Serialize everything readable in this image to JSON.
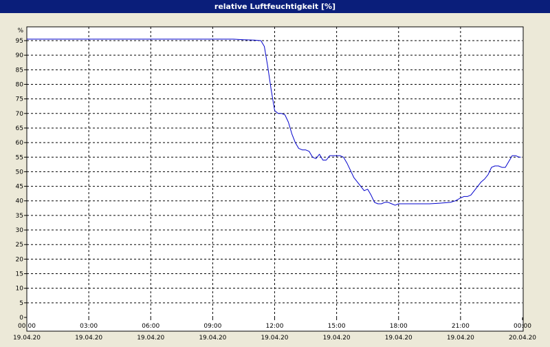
{
  "title": "relative Luftfeuchtigkeit [%]",
  "chart_data": {
    "type": "line",
    "title": "relative Luftfeuchtigkeit [%]",
    "y_unit": "%",
    "ylim": [
      0,
      100
    ],
    "yticks": [
      0,
      5,
      10,
      15,
      20,
      25,
      30,
      35,
      40,
      45,
      50,
      55,
      60,
      65,
      70,
      75,
      80,
      85,
      90,
      95
    ],
    "xlim": [
      "19.04.20 00:00",
      "20.04.20 00:00"
    ],
    "xticks": [
      {
        "time": "00:00",
        "date": "19.04.20"
      },
      {
        "time": "03:00",
        "date": "19.04.20"
      },
      {
        "time": "06:00",
        "date": "19.04.20"
      },
      {
        "time": "09:00",
        "date": "19.04.20"
      },
      {
        "time": "12:00",
        "date": "19.04.20"
      },
      {
        "time": "15:00",
        "date": "19.04.20"
      },
      {
        "time": "18:00",
        "date": "19.04.20"
      },
      {
        "time": "21:00",
        "date": "19.04.20"
      },
      {
        "time": "00:00",
        "date": "20.04.20"
      }
    ],
    "grid": true,
    "line_color": "#0000cc",
    "series": [
      {
        "x": [
          "00:00",
          "10:00",
          "10:30",
          "11:00",
          "11:20",
          "11:30",
          "11:40",
          "11:50",
          "12:00",
          "12:10",
          "12:20",
          "12:30",
          "12:40",
          "12:50",
          "13:00",
          "13:10",
          "13:20",
          "13:30",
          "13:40",
          "13:50",
          "14:00",
          "14:10",
          "14:20",
          "14:30",
          "14:40",
          "14:50",
          "15:00",
          "15:10",
          "15:20",
          "15:30",
          "15:40",
          "15:50",
          "16:00",
          "16:10",
          "16:20",
          "16:30",
          "16:40",
          "16:50",
          "17:00",
          "17:10",
          "17:20",
          "17:30",
          "17:40",
          "17:50",
          "18:00",
          "18:10",
          "18:20",
          "18:30",
          "18:40",
          "18:50",
          "19:00",
          "19:30",
          "20:00",
          "20:30",
          "20:45",
          "21:00",
          "21:10",
          "21:20",
          "21:30",
          "21:40",
          "21:50",
          "22:00",
          "22:10",
          "22:20",
          "22:30",
          "22:40",
          "22:50",
          "23:00",
          "23:10",
          "23:20",
          "23:30",
          "23:40",
          "23:50",
          "23:55"
        ],
        "y": [
          95.5,
          95.5,
          95.3,
          95.2,
          95.0,
          93.0,
          86.0,
          78.0,
          71.0,
          70.0,
          70.0,
          69.5,
          67.0,
          63.0,
          60.0,
          58.0,
          57.5,
          57.5,
          57.0,
          55.0,
          54.5,
          56.0,
          54.0,
          54.0,
          55.5,
          55.5,
          55.5,
          55.5,
          55.0,
          53.0,
          50.5,
          48.0,
          46.5,
          45.0,
          43.5,
          44.0,
          42.0,
          39.5,
          39.0,
          39.0,
          39.5,
          39.5,
          39.0,
          38.5,
          39.0,
          39.0,
          39.0,
          39.0,
          39.0,
          39.0,
          39.0,
          39.0,
          39.2,
          39.5,
          40.0,
          41.0,
          41.5,
          41.5,
          42.0,
          43.5,
          45.0,
          46.5,
          47.5,
          49.0,
          51.5,
          52.0,
          52.0,
          51.5,
          51.5,
          53.5,
          55.5,
          55.5,
          55.0,
          55.0
        ]
      }
    ]
  }
}
